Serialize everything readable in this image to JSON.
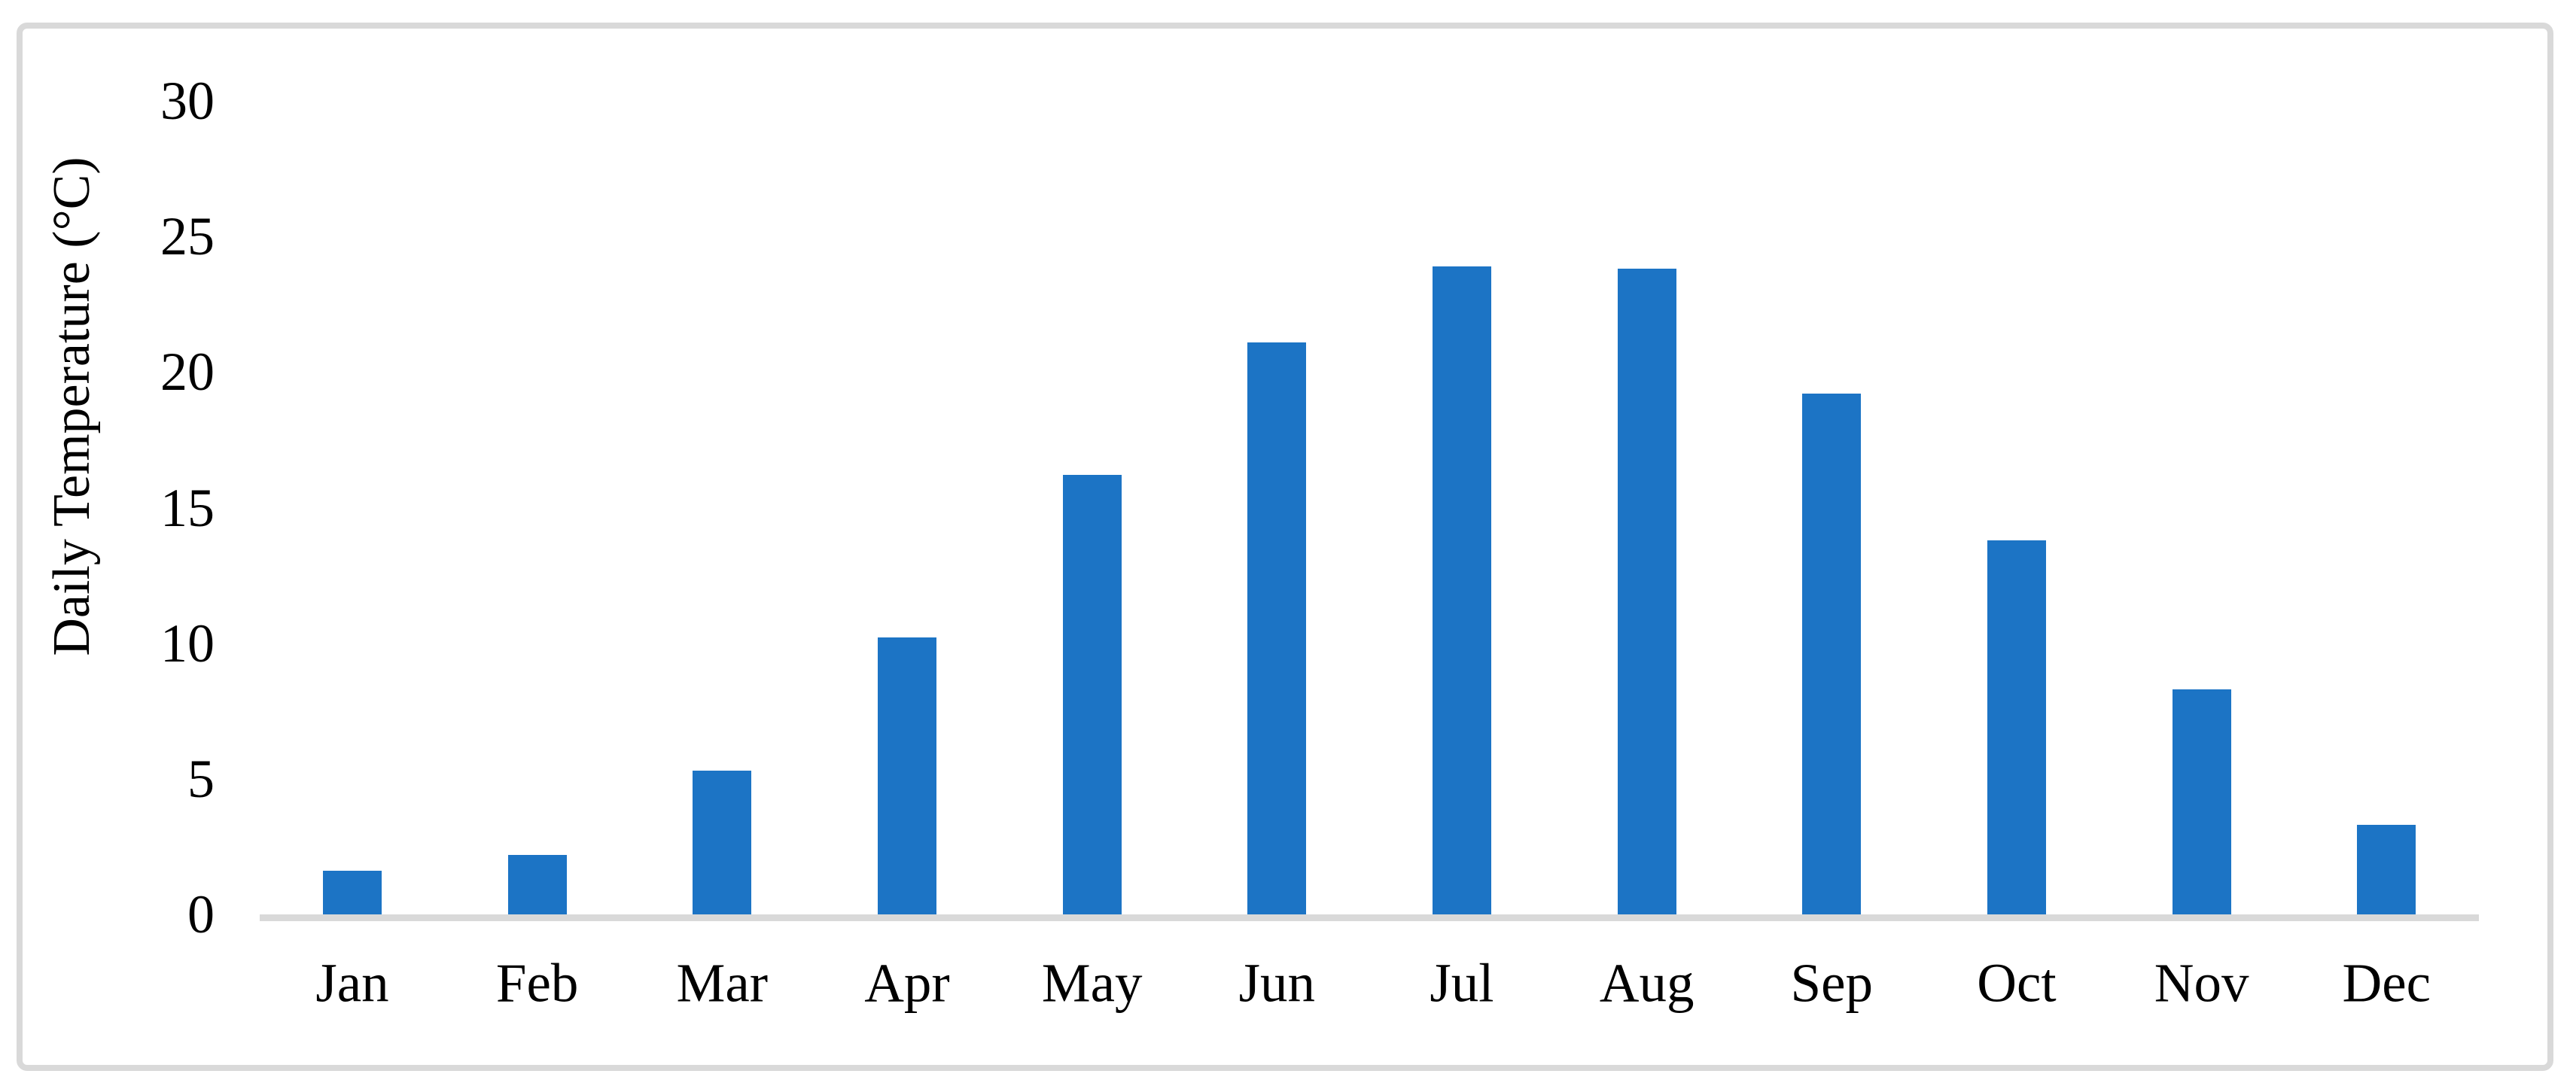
{
  "chart_data": {
    "type": "bar",
    "categories": [
      "Jan",
      "Feb",
      "Mar",
      "Apr",
      "May",
      "Jun",
      "Jul",
      "Aug",
      "Sep",
      "Oct",
      "Nov",
      "Dec"
    ],
    "values": [
      1.6,
      2.2,
      5.3,
      10.2,
      16.2,
      21.1,
      23.9,
      23.8,
      19.2,
      13.8,
      8.3,
      3.3
    ],
    "title": "",
    "xlabel": "",
    "ylabel": "Daily Temperature (°C)",
    "ylim": [
      0,
      30
    ],
    "yticks": [
      0,
      5,
      10,
      15,
      20,
      25,
      30
    ],
    "grid": "off",
    "legend": "none",
    "bar_color": "#1c74c5",
    "axis_line_color": "#d9d9d9",
    "frame_color": "#d9d9d9",
    "text_color": "#000000",
    "background_color": "#ffffff"
  }
}
